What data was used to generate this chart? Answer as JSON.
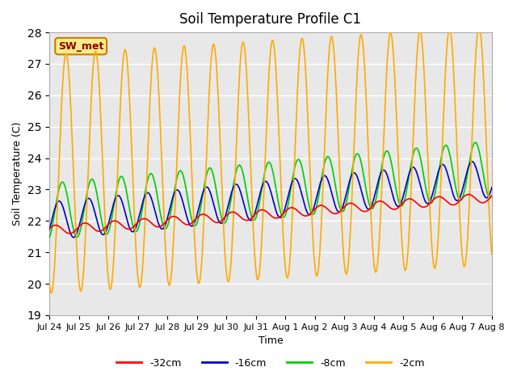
{
  "title": "Soil Temperature Profile C1",
  "xlabel": "Time",
  "ylabel": "Soil Temperature (C)",
  "ylim": [
    19.0,
    28.0
  ],
  "yticks": [
    19.0,
    20.0,
    21.0,
    22.0,
    23.0,
    24.0,
    25.0,
    26.0,
    27.0,
    28.0
  ],
  "bg_color": "#e8e8e8",
  "fig_color": "#ffffff",
  "station_label": "SW_met",
  "legend_entries": [
    "-32cm",
    "-16cm",
    "-8cm",
    "-2cm"
  ],
  "line_colors": [
    "#ff0000",
    "#0000cc",
    "#00cc00",
    "#ffaa00"
  ],
  "xtick_labels": [
    "Jul 24",
    "Jul 25",
    "Jul 26",
    "Jul 27",
    "Jul 28",
    "Jul 29",
    "Jul 30",
    "Jul 31",
    "Aug 1",
    "Aug 2",
    "Aug 3",
    "Aug 4",
    "Aug 5",
    "Aug 6",
    "Aug 7",
    "Aug 8"
  ],
  "n_days": 15,
  "period_hours": 24,
  "dt_hours": 0.5,
  "series_32cm_base": 21.7,
  "series_32cm_trend": 0.07,
  "series_32cm_amp": 0.15,
  "series_32cm_phase": 0.3,
  "series_16cm_base": 22.0,
  "series_16cm_trend": 0.09,
  "series_16cm_amp": 0.6,
  "series_16cm_phase": -0.5,
  "series_8cm_base": 22.3,
  "series_8cm_trend": 0.09,
  "series_8cm_amp": 0.9,
  "series_8cm_phase": -1.2,
  "series_2cm_base": 23.5,
  "series_2cm_trend": 0.06,
  "series_2cm_amp": 3.8,
  "series_2cm_phase": -2.0,
  "grid_color": "#ffffff",
  "grid_lw": 1.0
}
